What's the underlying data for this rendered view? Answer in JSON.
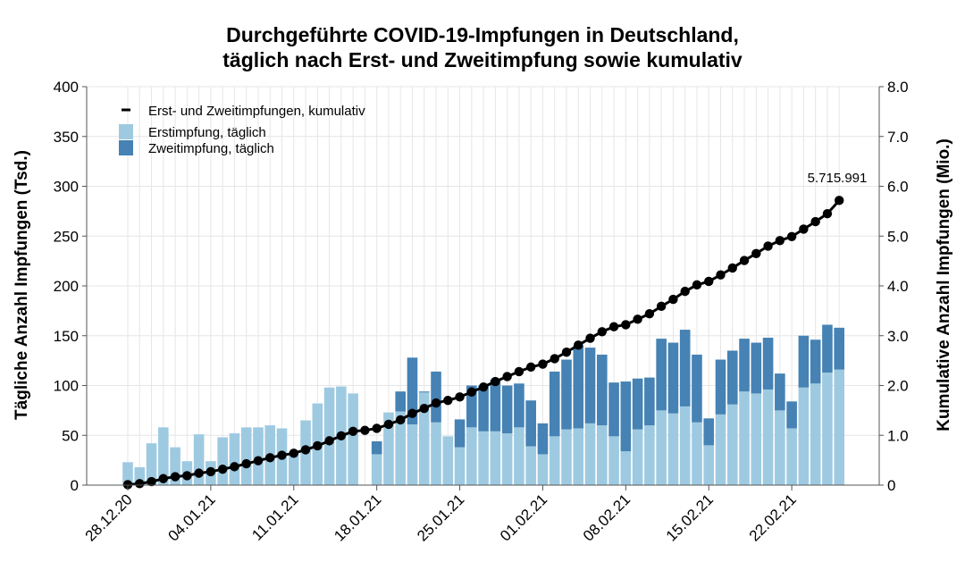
{
  "chart_data": {
    "type": "bar",
    "title": "Durchgeführte COVID-19-Impfungen in Deutschland,",
    "subtitle": "täglich nach Erst- und Zweitimpfung sowie kumulativ",
    "ylabel": "Tägliche Anzahl Impfungen (Tsd.)",
    "y2label": "Kumulative Anzahl Impfungen (Mio.)",
    "ylim": [
      0,
      400
    ],
    "y2lim": [
      0,
      8
    ],
    "yticks": [
      "0",
      "50",
      "100",
      "150",
      "200",
      "250",
      "300",
      "350",
      "400"
    ],
    "y2ticks": [
      "0",
      "1.0",
      "2.0",
      "3.0",
      "4.0",
      "5.0",
      "6.0",
      "7.0",
      "8.0"
    ],
    "xtick_labels": [
      {
        "day": 0,
        "label": "28.12.20"
      },
      {
        "day": 7,
        "label": "04.01.21"
      },
      {
        "day": 14,
        "label": "11.01.21"
      },
      {
        "day": 21,
        "label": "18.01.21"
      },
      {
        "day": 28,
        "label": "25.01.21"
      },
      {
        "day": 35,
        "label": "01.02.21"
      },
      {
        "day": 42,
        "label": "08.02.21"
      },
      {
        "day": 49,
        "label": "15.02.21"
      },
      {
        "day": 56,
        "label": "22.02.21"
      }
    ],
    "grid": true,
    "legend_position": "top-left",
    "x_days": [
      0,
      1,
      2,
      3,
      4,
      5,
      6,
      7,
      8,
      9,
      10,
      11,
      12,
      13,
      14,
      15,
      16,
      17,
      18,
      19,
      20,
      21,
      22,
      23,
      24,
      25,
      26,
      27,
      28,
      29,
      30,
      31,
      32,
      33,
      34,
      35,
      36,
      37,
      38,
      39,
      40,
      41,
      42,
      43,
      44,
      45,
      46,
      47,
      48,
      49,
      50,
      51,
      52,
      53,
      54,
      55,
      56,
      57,
      58,
      59,
      60
    ],
    "series": [
      {
        "name": "Erstimpfung, täglich",
        "color": "#9ecae1",
        "values": [
          23,
          18,
          42,
          58,
          38,
          24,
          51,
          24,
          48,
          52,
          58,
          58,
          60,
          57,
          31,
          65,
          82,
          98,
          99,
          92,
          0,
          31,
          73,
          74,
          61,
          93,
          63,
          49,
          38,
          58,
          54,
          54,
          52,
          58,
          39,
          31,
          49,
          56,
          57,
          62,
          60,
          49,
          34,
          56,
          60,
          75,
          72,
          79,
          63,
          40,
          71,
          81,
          94,
          92,
          96,
          75,
          57,
          98,
          102,
          113,
          116
        ]
      },
      {
        "name": "Zweitimpfung, täglich",
        "color": "#4682b4",
        "values": [
          0,
          0,
          0,
          0,
          0,
          0,
          0,
          0,
          0,
          0,
          0,
          0,
          0,
          0,
          0,
          0,
          0,
          0,
          0,
          0,
          0,
          13,
          0,
          20,
          67,
          1,
          51,
          0,
          28,
          42,
          46,
          52,
          48,
          44,
          46,
          31,
          65,
          70,
          83,
          76,
          71,
          54,
          70,
          51,
          48,
          72,
          71,
          77,
          68,
          27,
          55,
          54,
          53,
          51,
          52,
          37,
          27,
          52,
          44,
          48,
          42
        ]
      },
      {
        "name": "Erst- und Zweitimpfungen, kumulativ",
        "color": "#000000",
        "values": [
          0.01,
          0.03,
          0.07,
          0.13,
          0.17,
          0.19,
          0.24,
          0.27,
          0.32,
          0.37,
          0.43,
          0.49,
          0.55,
          0.6,
          0.64,
          0.71,
          0.79,
          0.89,
          0.99,
          1.08,
          1.1,
          1.14,
          1.22,
          1.31,
          1.44,
          1.54,
          1.65,
          1.7,
          1.77,
          1.87,
          1.97,
          2.08,
          2.18,
          2.28,
          2.37,
          2.43,
          2.54,
          2.67,
          2.81,
          2.95,
          3.08,
          3.18,
          3.22,
          3.33,
          3.44,
          3.59,
          3.73,
          3.89,
          4.02,
          4.09,
          4.22,
          4.36,
          4.51,
          4.65,
          4.8,
          4.91,
          4.99,
          5.14,
          5.29,
          5.45,
          5.716
        ]
      }
    ],
    "last_value_label": "5.715.991"
  }
}
